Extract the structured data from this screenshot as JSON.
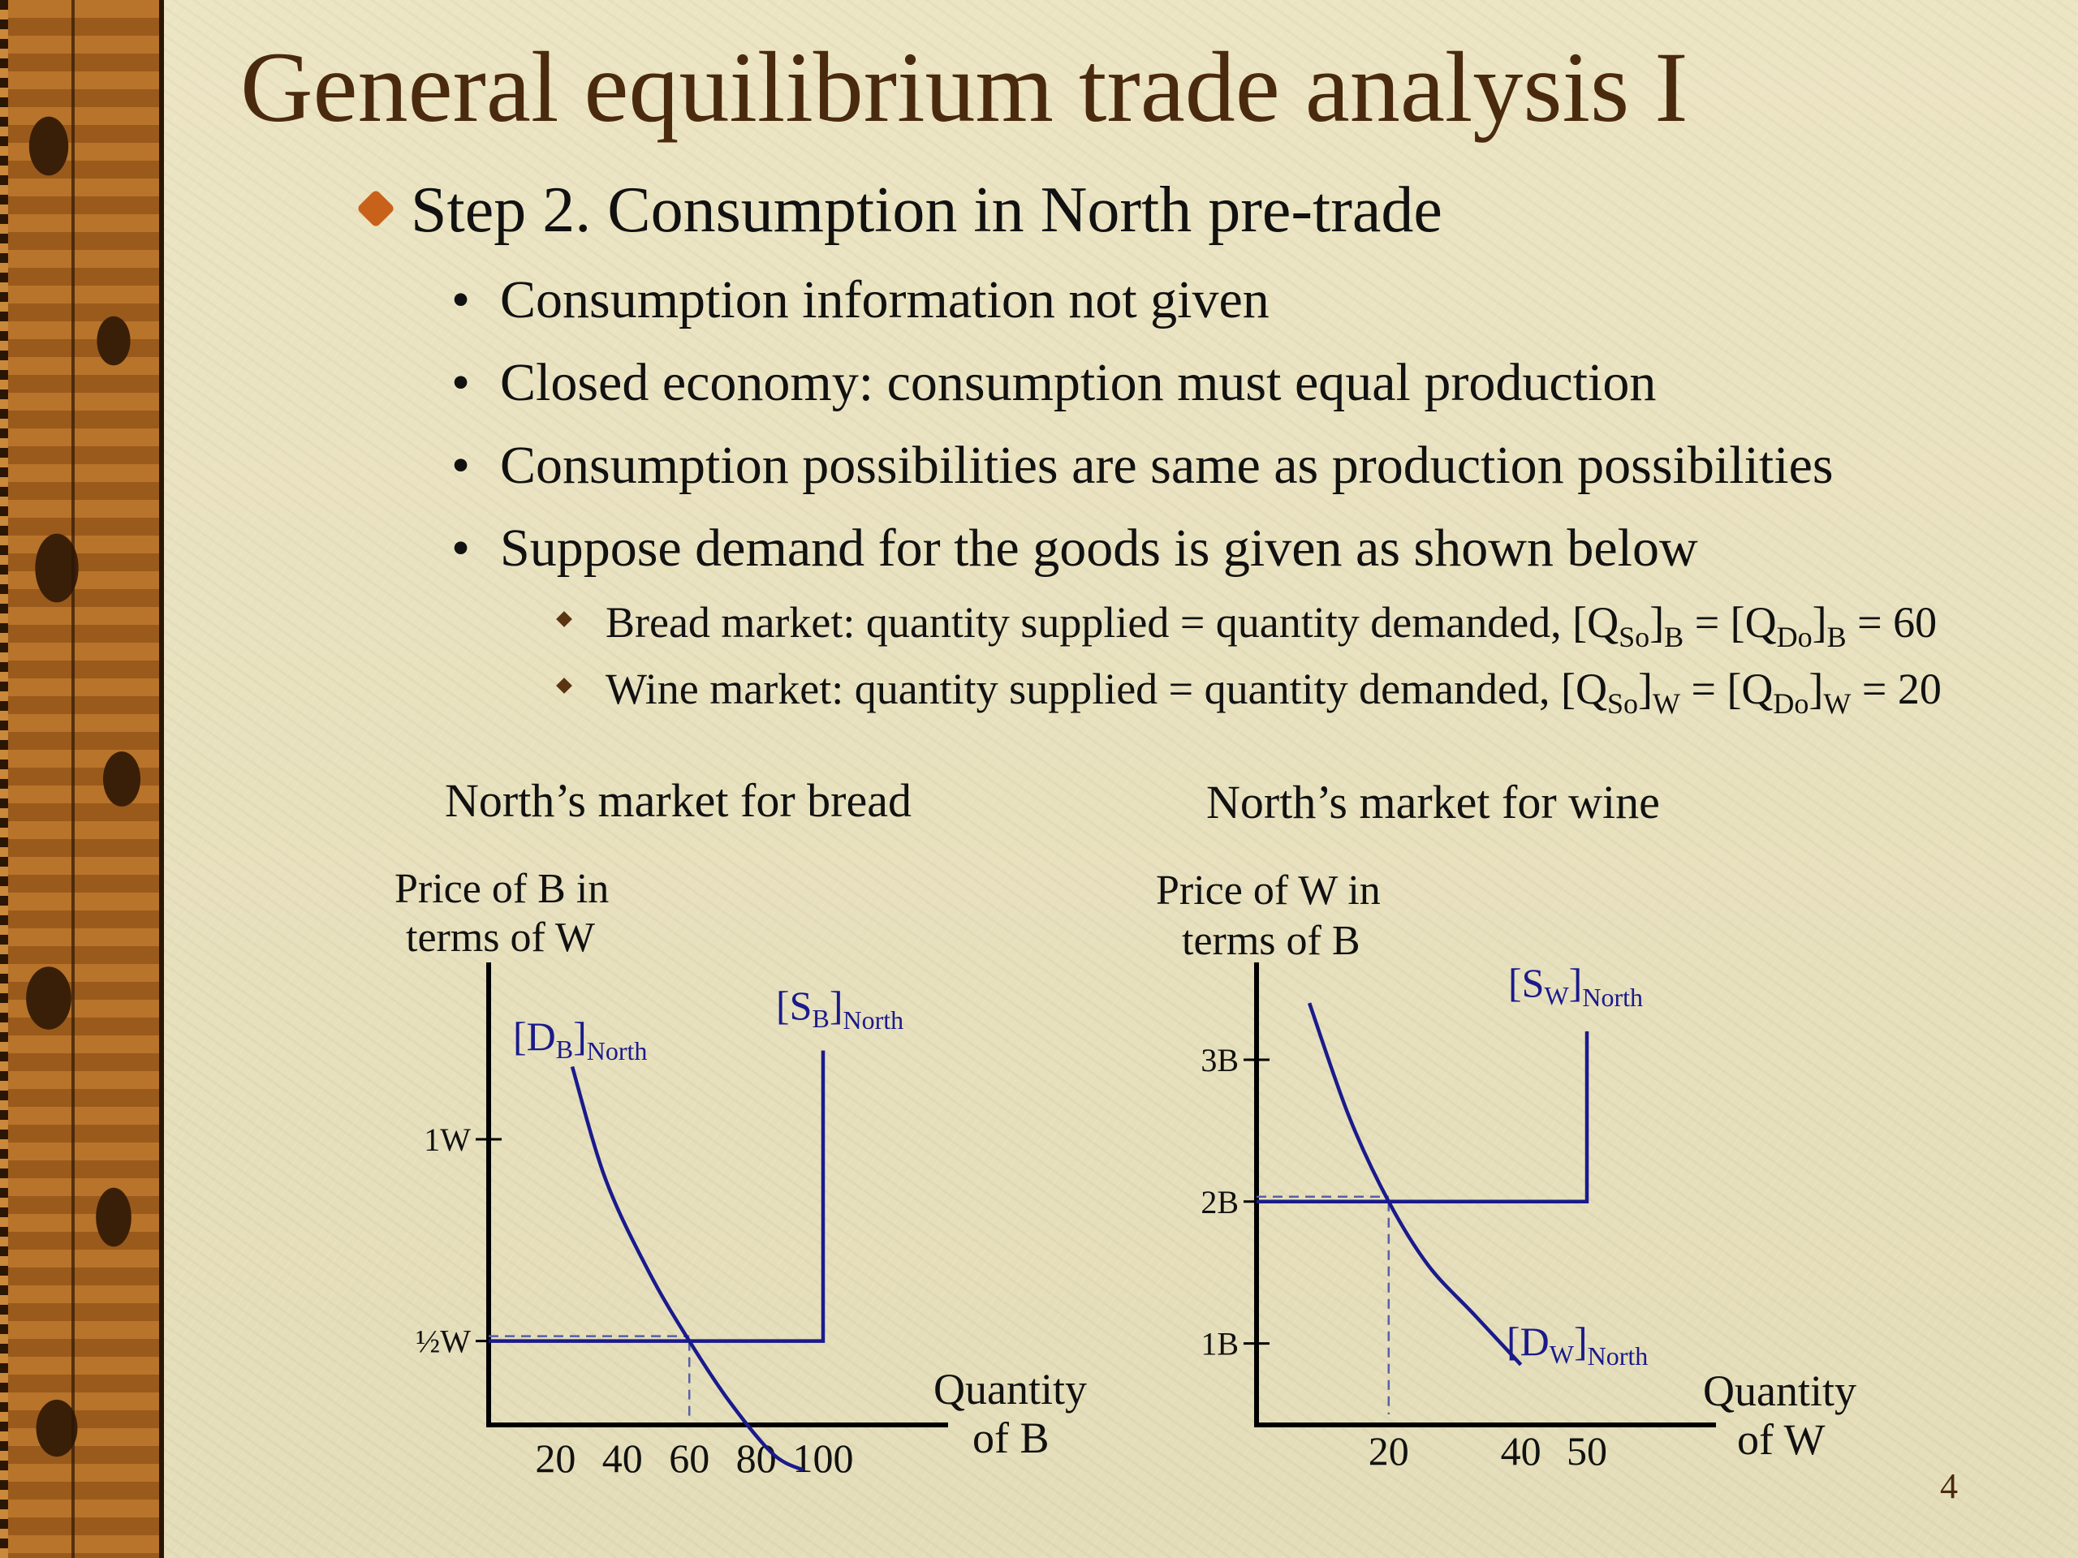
{
  "slide": {
    "title": "General equilibrium trade analysis I",
    "step_heading": "Step 2. Consumption in North pre-trade",
    "bullets": [
      "Consumption information not given",
      "Closed economy: consumption must equal production",
      "Consumption possibilities are same as production possibilities",
      "Suppose demand for the goods is given as shown below"
    ],
    "sub_bullets": [
      {
        "text": "Bread market: quantity supplied = quantity demanded, [Q",
        "sub1": "So",
        "mid1": "]",
        "sub2": "B",
        "mid2": " = [Q",
        "sub3": "Do",
        "mid3": "]",
        "sub4": "B",
        "tail": " = 60"
      },
      {
        "text": "Wine market: quantity supplied = quantity demanded, [Q",
        "sub1": "So",
        "mid1": "]",
        "sub2": "W",
        "mid2": " = [Q",
        "sub3": "Do",
        "mid3": "]",
        "sub4": "W",
        "tail": " = 20"
      }
    ],
    "slide_number": "4",
    "colors": {
      "title": "#4a2a0e",
      "curve": "#1a1a8c",
      "bullet_main": "#c8621b"
    }
  },
  "chart_data": [
    {
      "type": "line",
      "title": "North’s market for bread",
      "ylabel_line1": "Price of B in",
      "ylabel_line2": "terms of W",
      "xlabel_line1": "Quantity",
      "xlabel_line2": "of B",
      "xticks": [
        "20",
        "40",
        "60",
        "80",
        "100"
      ],
      "yticks": [
        {
          "label": "1W",
          "value": 1
        },
        {
          "label": "½W",
          "value": 0.5
        }
      ],
      "series": [
        {
          "name": "[D_B]_North",
          "label_main": "[D",
          "label_sub1": "B",
          "label_mid": "]",
          "label_sub2": "North",
          "points": [
            [
              25,
              1.18
            ],
            [
              35,
              0.9
            ],
            [
              48,
              0.67
            ],
            [
              60,
              0.5
            ],
            [
              72,
              0.35
            ],
            [
              85,
              0.22
            ],
            [
              94,
              0.18
            ]
          ]
        },
        {
          "name": "[S_B]_North",
          "label_main": "[S",
          "label_sub1": "B",
          "label_mid": "]",
          "label_sub2": "North",
          "points": [
            [
              0,
              0.5
            ],
            [
              100,
              0.5
            ],
            [
              100,
              1.22
            ]
          ]
        }
      ],
      "equilibrium": {
        "x": 60,
        "y": 0.5
      }
    },
    {
      "type": "line",
      "title": "North’s market for wine",
      "ylabel_line1": "Price of W in",
      "ylabel_line2": "terms of B",
      "xlabel_line1": "Quantity",
      "xlabel_line2": "of W",
      "xticks": [
        "20",
        "40",
        "50"
      ],
      "yticks": [
        {
          "label": "3B",
          "value": 3
        },
        {
          "label": "2B",
          "value": 2
        },
        {
          "label": "1B",
          "value": 1
        }
      ],
      "series": [
        {
          "name": "[D_W]_North",
          "label_main": "[D",
          "label_sub1": "W",
          "label_mid": "]",
          "label_sub2": "North",
          "points": [
            [
              8,
              3.4
            ],
            [
              14,
              2.6
            ],
            [
              20,
              2.0
            ],
            [
              26,
              1.55
            ],
            [
              33,
              1.2
            ],
            [
              40,
              0.85
            ]
          ]
        },
        {
          "name": "[S_W]_North",
          "label_main": "[S",
          "label_sub1": "W",
          "label_mid": "]",
          "label_sub2": "North",
          "points": [
            [
              0,
              2.0
            ],
            [
              50,
              2.0
            ],
            [
              50,
              3.2
            ]
          ]
        }
      ],
      "equilibrium": {
        "x": 20,
        "y": 2.0
      }
    }
  ]
}
